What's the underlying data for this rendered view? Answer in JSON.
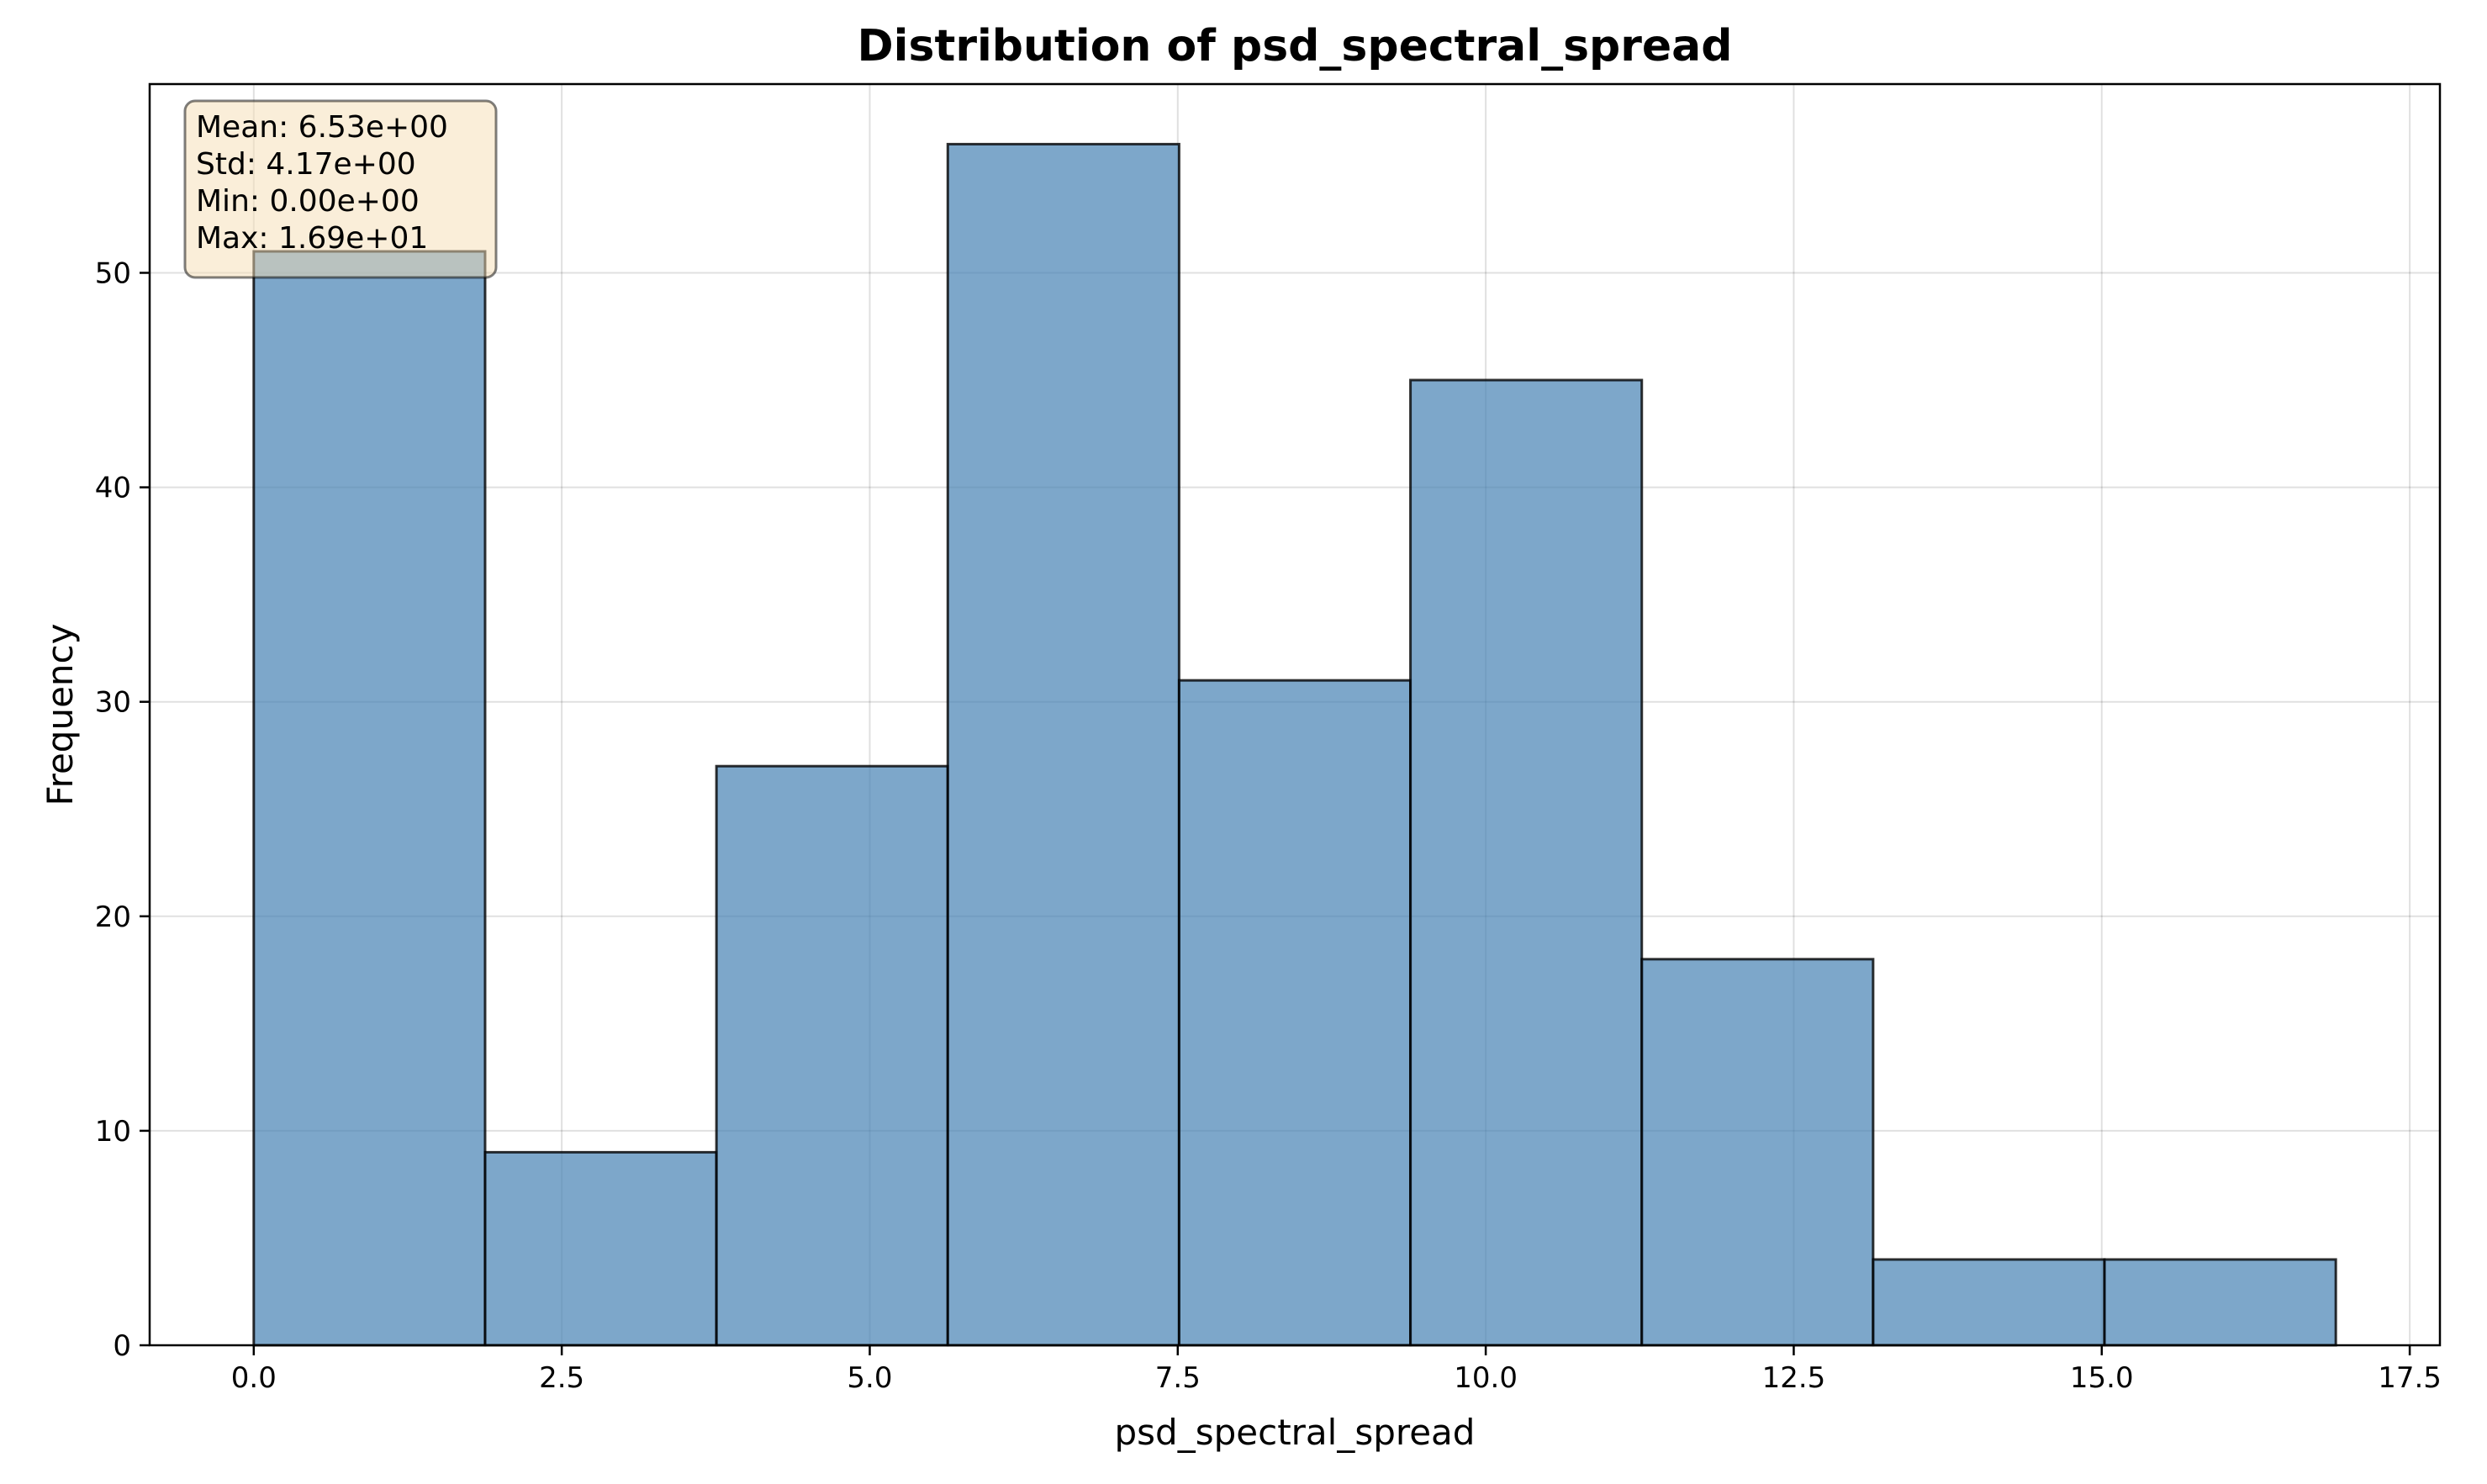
{
  "chart_data": {
    "type": "bar",
    "title": "Distribution of psd_spectral_spread",
    "xlabel": "psd_spectral_spread",
    "ylabel": "Frequency",
    "bin_edges": [
      0.0,
      1.8778,
      3.7556,
      5.6333,
      7.5111,
      9.3889,
      11.2667,
      13.1444,
      15.0222,
      16.9
    ],
    "values": [
      51,
      9,
      27,
      56,
      31,
      45,
      18,
      4,
      4
    ],
    "xlim": [
      -0.845,
      17.745
    ],
    "ylim": [
      0,
      58.8
    ],
    "xticks": [
      0.0,
      2.5,
      5.0,
      7.5,
      10.0,
      12.5,
      15.0,
      17.5
    ],
    "xtick_labels": [
      "0.0",
      "2.5",
      "5.0",
      "7.5",
      "10.0",
      "12.5",
      "15.0",
      "17.5"
    ],
    "yticks": [
      0,
      10,
      20,
      30,
      40,
      50
    ],
    "ytick_labels": [
      "0",
      "10",
      "20",
      "30",
      "40",
      "50"
    ],
    "grid": true,
    "bar_color": "#4682b4",
    "edge_color": "#000000",
    "stats_box": {
      "lines": [
        "Mean: 6.53e+00",
        "Std: 4.17e+00",
        "Min: 0.00e+00",
        "Max: 1.69e+01"
      ],
      "background": "#f5deb3",
      "placement": "top-left"
    }
  }
}
